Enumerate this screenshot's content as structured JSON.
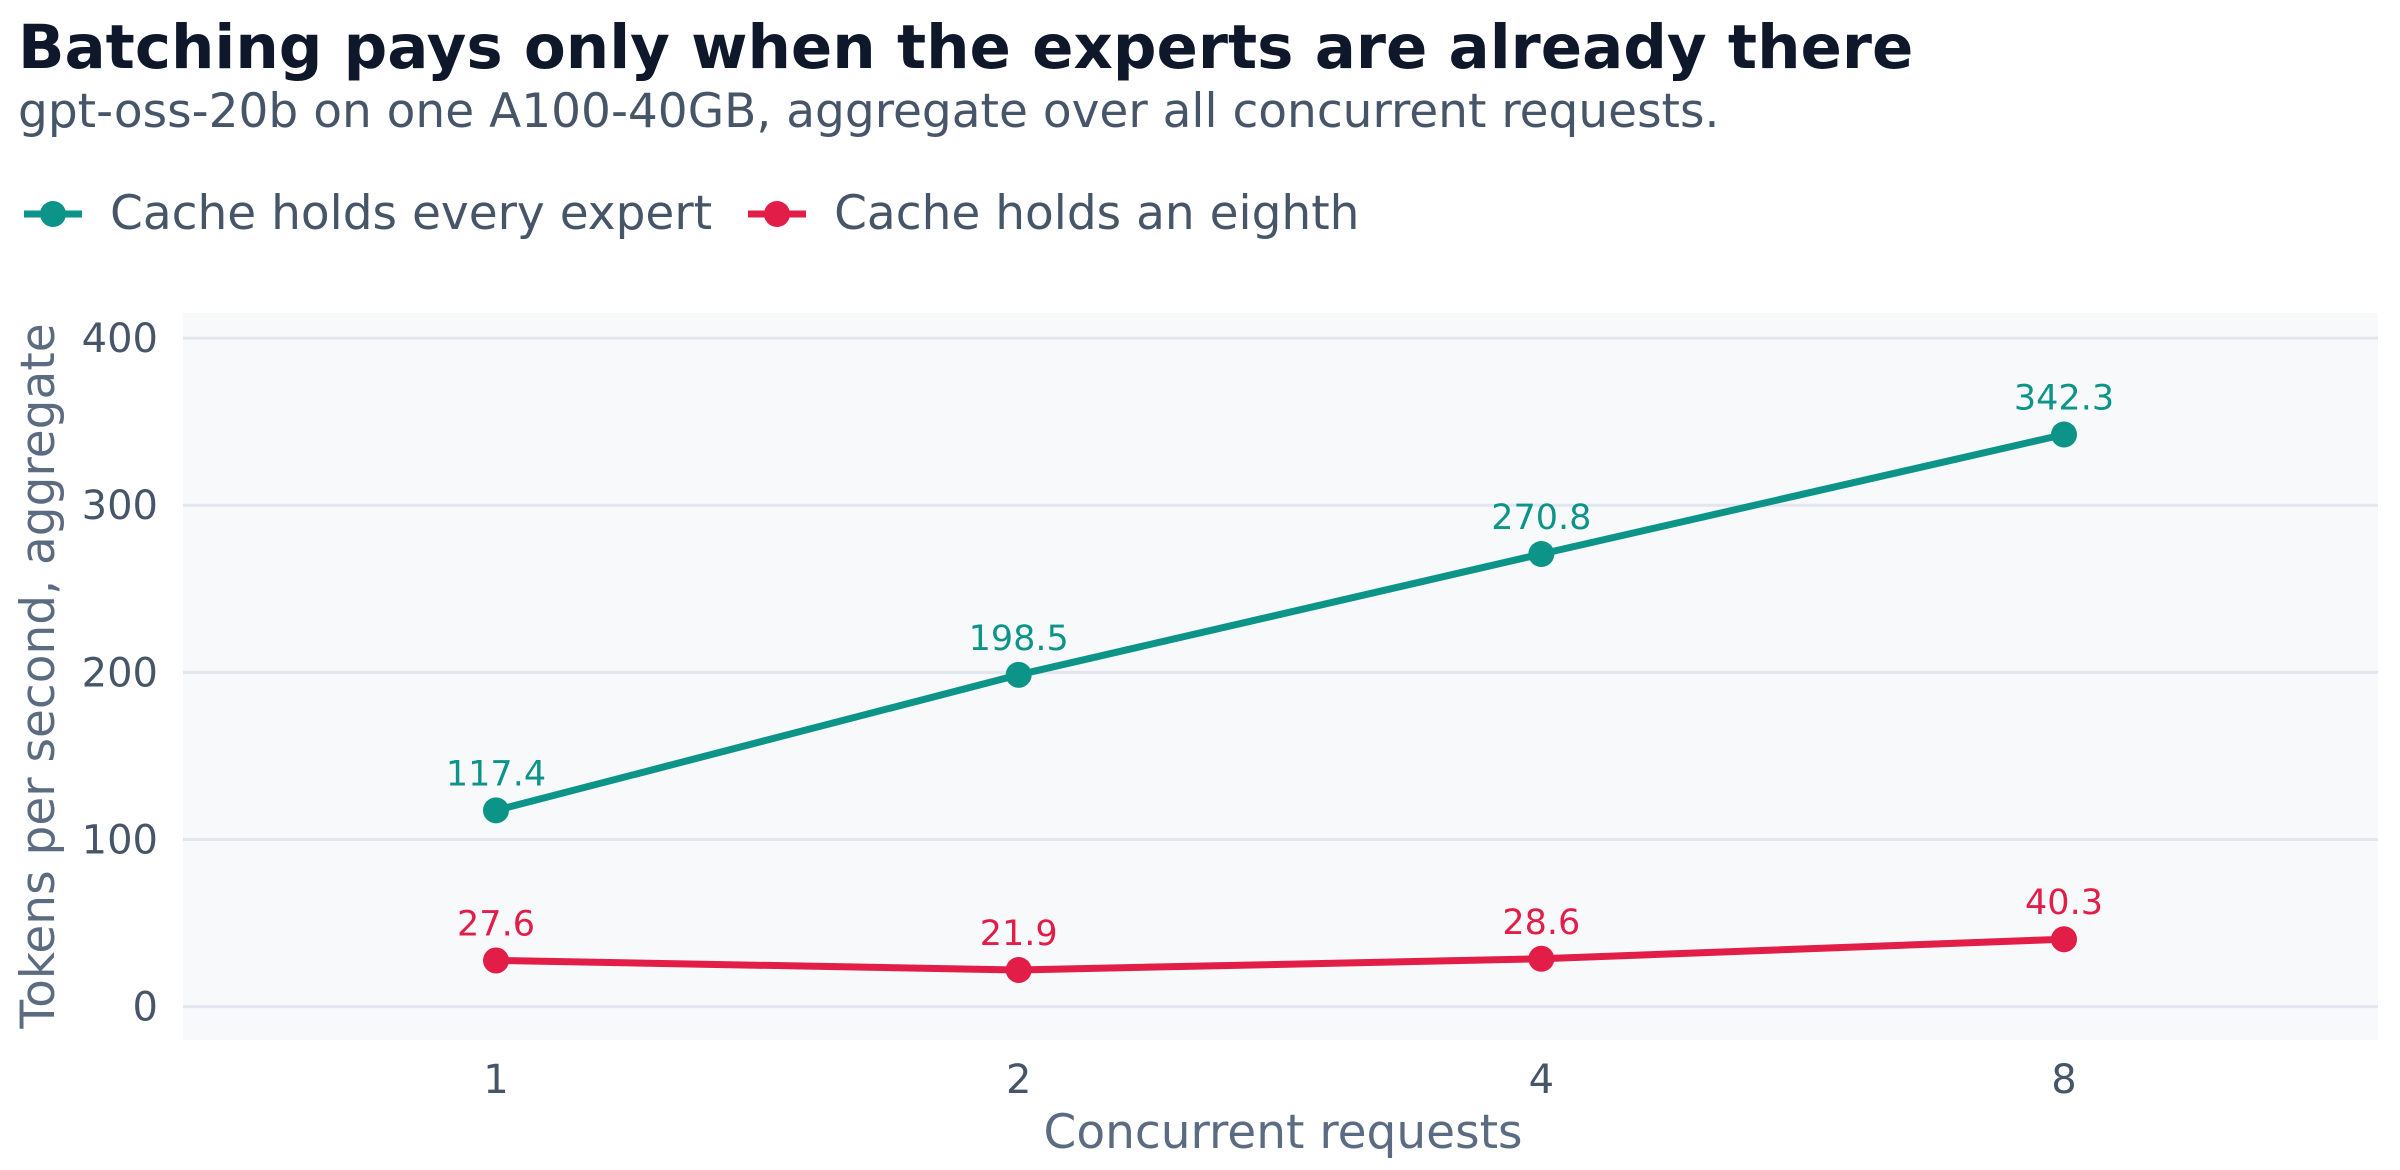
{
  "title": "Batching pays only when the experts are already there",
  "subtitle": "gpt-oss-20b on one A100-40GB, aggregate over all concurrent requests.",
  "chart_data": {
    "type": "line",
    "x": [
      "1",
      "2",
      "4",
      "8"
    ],
    "xlabel": "Concurrent requests",
    "ylabel": "Tokens per second, aggregate",
    "ylim": [
      -20,
      415
    ],
    "yticks": [
      "0",
      "100",
      "200",
      "300",
      "400"
    ],
    "grid": true,
    "legend_position": "top-left",
    "series": [
      {
        "name": "Cache holds every expert",
        "color": "#0d9488",
        "values": [
          117.4,
          198.5,
          270.8,
          342.3
        ],
        "labels": [
          "117.4",
          "198.5",
          "270.8",
          "342.3"
        ]
      },
      {
        "name": "Cache holds an eighth",
        "color": "#e11d48",
        "values": [
          27.6,
          21.9,
          28.6,
          40.3
        ],
        "labels": [
          "27.6",
          "21.9",
          "28.6",
          "40.3"
        ]
      }
    ],
    "plot_background": "#f8f9fb",
    "grid_color": "#e2e6ef"
  }
}
